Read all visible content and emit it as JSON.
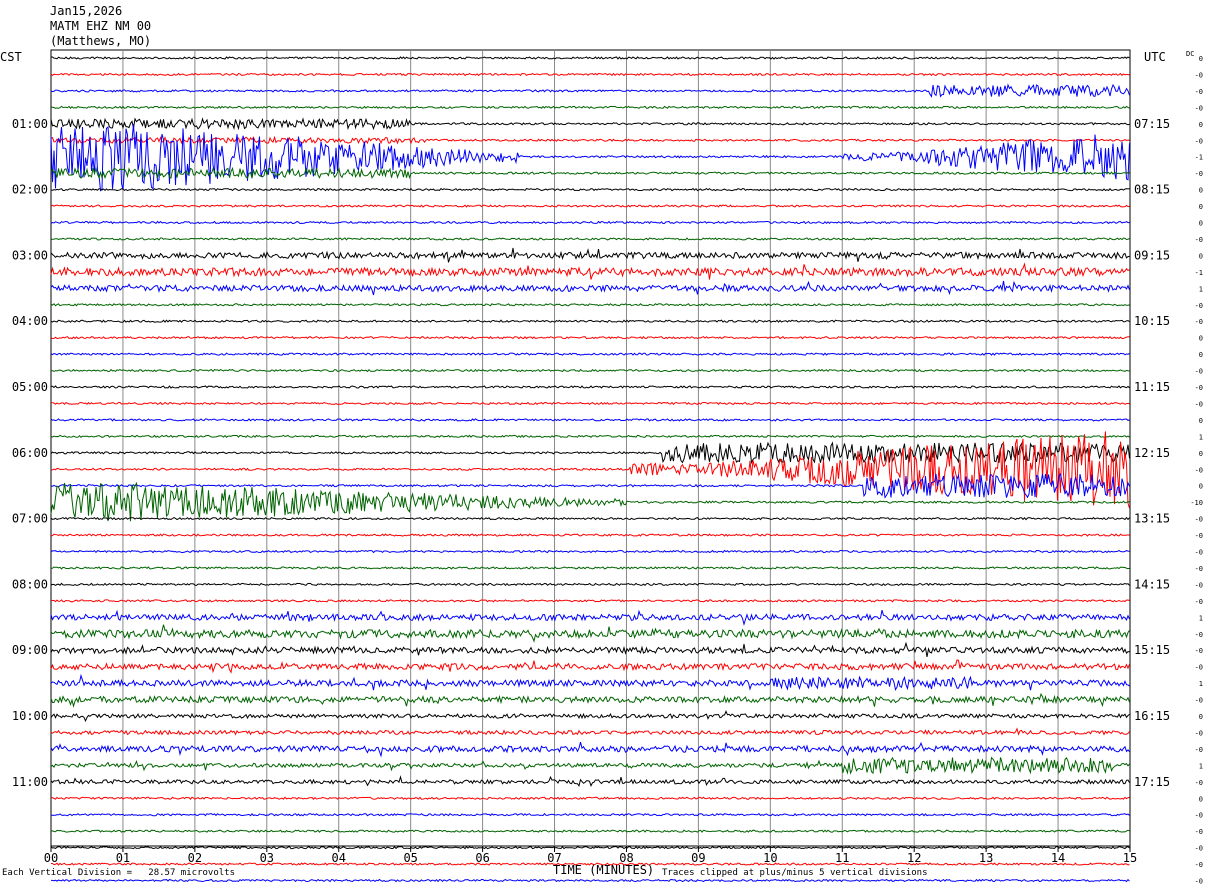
{
  "header": {
    "date": "Jan15,2026",
    "station": "MATM EHZ NM 00",
    "location": "(Matthews, MO)"
  },
  "left_tz": "CST",
  "right_tz": "UTC",
  "dc_label": "DC",
  "left_time_labels": [
    "01:00",
    "02:00",
    "03:00",
    "04:00",
    "05:00",
    "06:00",
    "07:00",
    "08:00",
    "09:00",
    "10:00",
    "11:00"
  ],
  "right_time_labels": [
    "07:15",
    "08:15",
    "09:15",
    "10:15",
    "11:15",
    "12:15",
    "13:15",
    "14:15",
    "15:15",
    "16:15",
    "17:15"
  ],
  "x_ticks": [
    "00",
    "01",
    "02",
    "03",
    "04",
    "05",
    "06",
    "07",
    "08",
    "09",
    "10",
    "11",
    "12",
    "13",
    "14",
    "15"
  ],
  "x_axis_label": "TIME (MINUTES)",
  "footer_left": "Each Vertical Division =   28.57 microvolts",
  "footer_right": "Traces clipped at plus/minus 5 vertical divisions",
  "dc_offsets": [
    "0",
    "-0",
    "-0",
    "-0",
    "0",
    "-0",
    "-1",
    "-0",
    "0",
    "0",
    "0",
    "-0",
    "0",
    "-1",
    "1",
    "-0",
    "-0",
    "0",
    "0",
    "-0",
    "-0",
    "-0",
    "0",
    "1",
    "0",
    "-0",
    "0",
    "-10",
    "-0",
    "-0",
    "-0",
    "-0",
    "-0",
    "-0",
    "1",
    "-0",
    "-0",
    "-0",
    "1",
    "-0",
    "0",
    "-0",
    "-0",
    "1",
    "-0",
    "0",
    "-0",
    "-0",
    "-0",
    "-0",
    "-0"
  ],
  "trace_colors": [
    "#000000",
    "#ff0000",
    "#0000ff",
    "#006400"
  ],
  "events": [
    {
      "trace": 4,
      "start": 0,
      "end": 5.0,
      "amp": 5,
      "decay": false
    },
    {
      "trace": 5,
      "start": 0,
      "end": 5.2,
      "amp": 3,
      "decay": false
    },
    {
      "trace": 6,
      "start": 0,
      "end": 6.5,
      "amp": 40,
      "decay": true
    },
    {
      "trace": 7,
      "start": 0,
      "end": 5.0,
      "amp": 5,
      "decay": false
    },
    {
      "trace": 2,
      "start": 12.2,
      "end": 15,
      "amp": 6,
      "decay": false
    },
    {
      "trace": 6,
      "start": 11,
      "end": 15,
      "amp": 26,
      "grow": true
    },
    {
      "trace": 27,
      "start": 0,
      "end": 8,
      "amp": 22,
      "decay": true
    },
    {
      "trace": 25,
      "start": 8,
      "end": 15,
      "amp": 40,
      "grow": true
    },
    {
      "trace": 26,
      "start": 11.3,
      "end": 15,
      "amp": 12,
      "decay": false
    },
    {
      "trace": 24,
      "start": 8.5,
      "end": 15,
      "amp": 10,
      "decay": false
    },
    {
      "trace": 43,
      "start": 11,
      "end": 14.8,
      "amp": 8,
      "decay": false
    },
    {
      "trace": 38,
      "start": 10,
      "end": 12.8,
      "amp": 6,
      "decay": false
    }
  ],
  "noise_levels": [
    1,
    1,
    1,
    1,
    1,
    1,
    1,
    1,
    1,
    1,
    1,
    1,
    3,
    4,
    3,
    1,
    1,
    1,
    1,
    1,
    1,
    1,
    1,
    1,
    1,
    1,
    1,
    1,
    1,
    1,
    1,
    1,
    1,
    1,
    3,
    4,
    3,
    3,
    3,
    3,
    2,
    2,
    3,
    2,
    2,
    1,
    1,
    1,
    1,
    1,
    1
  ]
}
